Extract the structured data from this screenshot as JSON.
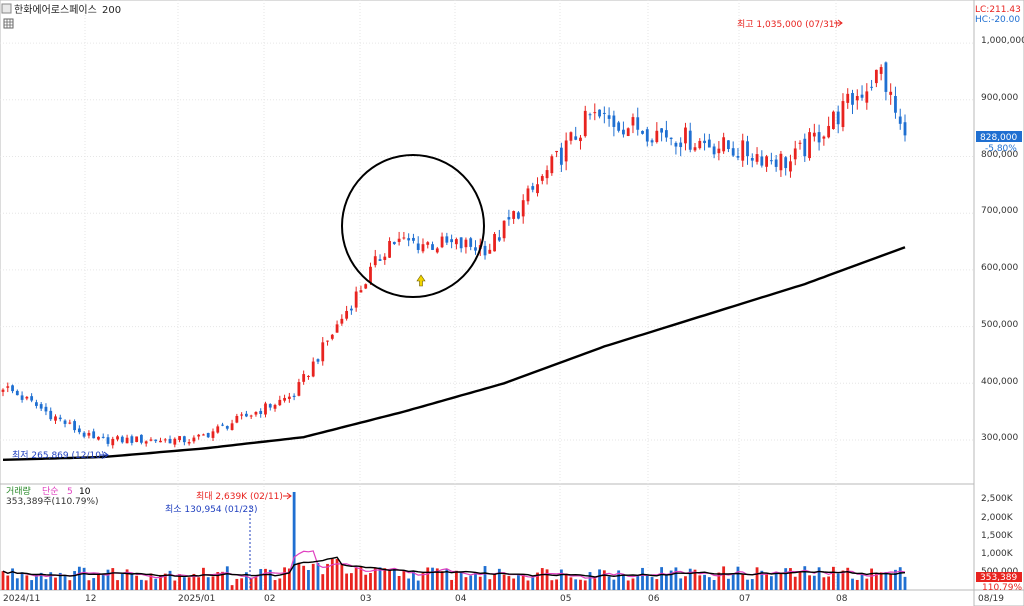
{
  "header": {
    "stock_name": "한화에어로스페이스",
    "ma_period": "200",
    "lc_label": "LC:211.43",
    "hc_label": "HC:-20.00"
  },
  "price_panel": {
    "high_annotation": "최고 1,035,000 (07/31)",
    "low_annotation": "최저 265,869 (12/10)",
    "current_price": "828,000",
    "change_pct": "-5.80%",
    "y_tick_labels": [
      "1,000,000",
      "900,000",
      "800,000",
      "700,000",
      "600,000",
      "500,000",
      "400,000",
      "300,000"
    ]
  },
  "volume_panel": {
    "legend": {
      "name": "거래량",
      "ma_type": "단순",
      "ma1": "5",
      "ma2": "10"
    },
    "summary": "353,389주(110.79%)",
    "max_annotation": "최대 2,639K (02/11)",
    "min_annotation": "최소 130,954 (01/23)",
    "y_tick_labels": [
      "2,500K",
      "2,000K",
      "1,500K",
      "1,000K",
      "500,000"
    ],
    "current_volume": "353,389",
    "current_ratio": "110.79%"
  },
  "x_axis_labels": [
    "2024/11",
    "12",
    "2025/01",
    "02",
    "03",
    "04",
    "05",
    "06",
    "07",
    "08",
    "08/19"
  ],
  "colors": {
    "up": "#e8231f",
    "down": "#1f6fd1",
    "ma200": "#000000",
    "vol_ma5": "#e040c0",
    "vol_ma10": "#000000",
    "annotation_red": "#e8231f",
    "annotation_blue": "#1f3fbf",
    "arrow_marker": "#f2d500"
  },
  "chart_data": [
    {
      "type": "candlestick",
      "title": "한화에어로스페이스",
      "ylim": [
        240000,
        1080000
      ],
      "x": [
        "2024/11",
        "12",
        "2025/01",
        "02",
        "03",
        "04",
        "05",
        "06",
        "07",
        "08"
      ],
      "series": [
        {
          "name": "close_by_month_start",
          "values": [
            395000,
            300000,
            300000,
            380000,
            650000,
            640000,
            870000,
            830000,
            790000,
            950000
          ]
        },
        {
          "name": "200",
          "values": [
            265000,
            270000,
            285000,
            305000,
            350000,
            400000,
            465000,
            520000,
            575000,
            640000
          ]
        }
      ],
      "annotations": [
        "최고 1,035,000 (07/31)",
        "최저 265,869 (12/10)"
      ],
      "last_close": 828000
    },
    {
      "type": "bar",
      "title": "거래량",
      "ylim": [
        0,
        2800000
      ],
      "series": [
        {
          "name": "거래량",
          "max": 2639000,
          "min": 130954,
          "last": 353389
        }
      ]
    }
  ]
}
